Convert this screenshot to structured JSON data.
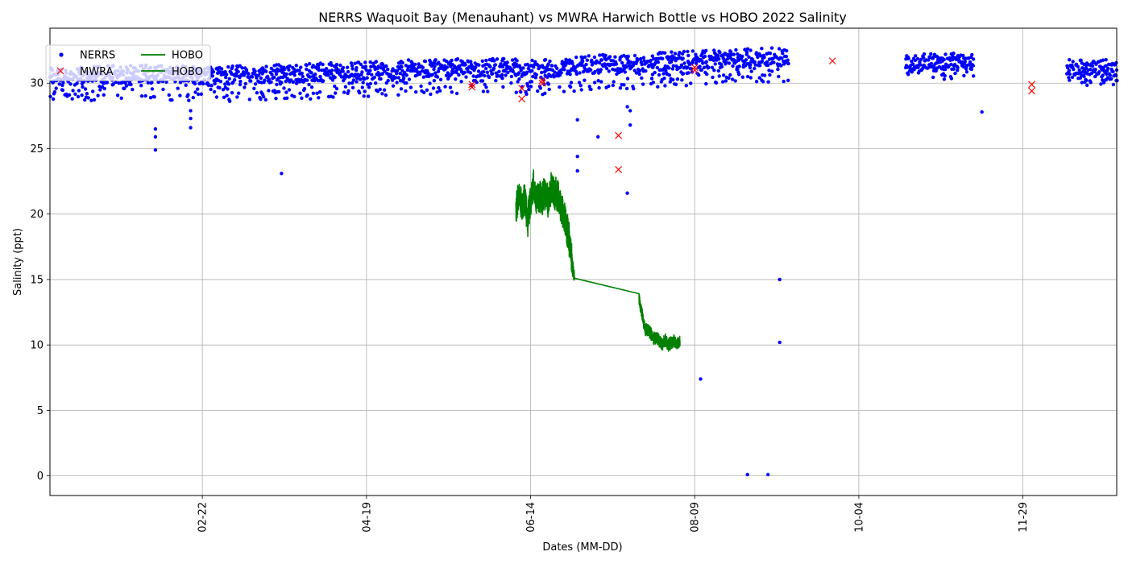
{
  "chart_data": {
    "type": "scatter",
    "title": "NERRS Waquoit Bay (Menauhant) vs MWRA Harwich Bottle vs HOBO 2022 Salinity",
    "xlabel": "Dates (MM-DD)",
    "ylabel": "Salinity (ppt)",
    "x_ticks": [
      "02-22",
      "04-19",
      "06-14",
      "08-09",
      "10-04",
      "11-29"
    ],
    "y_ticks": [
      0,
      5,
      10,
      15,
      20,
      25,
      30
    ],
    "xlim": [
      "2022-01-01",
      "2022-12-31"
    ],
    "ylim": [
      -1.5,
      34.2
    ],
    "grid": true,
    "legend_position": "top-left",
    "legend": [
      "NERRS",
      "MWRA",
      "HOBO",
      "HOBO"
    ],
    "colors": {
      "nerrs": "#0000ff",
      "mwra": "#ff0000",
      "hobo": "#008000"
    },
    "series": [
      {
        "name": "NERRS",
        "kind": "scatter",
        "baseline_band": [
          [
            "2022-01-01",
            30.3
          ],
          [
            "2022-02-01",
            30.5
          ],
          [
            "2022-03-01",
            30.4
          ],
          [
            "2022-04-01",
            30.6
          ],
          [
            "2022-05-01",
            30.9
          ],
          [
            "2022-06-01",
            31.0
          ],
          [
            "2022-06-20",
            30.9
          ],
          [
            "2022-07-01",
            31.2
          ],
          [
            "2022-08-01",
            31.5
          ],
          [
            "2022-08-31",
            31.8
          ],
          [
            "2022-09-10",
            31.8
          ]
        ],
        "late_segments": [
          [
            "2022-10-20",
            "2022-11-12",
            31.5
          ],
          [
            "2022-12-14",
            "2022-12-31",
            31.0
          ]
        ],
        "outliers": [
          [
            "2022-02-06",
            26.5
          ],
          [
            "2022-02-06",
            25.9
          ],
          [
            "2022-02-06",
            24.9
          ],
          [
            "2022-02-18",
            26.6
          ],
          [
            "2022-02-18",
            27.3
          ],
          [
            "2022-02-18",
            27.9
          ],
          [
            "2022-03-21",
            23.1
          ],
          [
            "2022-06-30",
            27.2
          ],
          [
            "2022-06-30",
            24.4
          ],
          [
            "2022-06-30",
            23.3
          ],
          [
            "2022-07-07",
            25.9
          ],
          [
            "2022-07-17",
            28.2
          ],
          [
            "2022-07-17",
            21.6
          ],
          [
            "2022-07-18",
            26.8
          ],
          [
            "2022-07-18",
            27.9
          ],
          [
            "2022-08-11",
            7.4
          ],
          [
            "2022-08-27",
            0.1
          ],
          [
            "2022-09-03",
            0.1
          ],
          [
            "2022-09-07",
            15.0
          ],
          [
            "2022-09-07",
            10.2
          ],
          [
            "2022-11-15",
            27.8
          ]
        ]
      },
      {
        "name": "MWRA",
        "kind": "marker",
        "points": [
          [
            "2022-05-25",
            29.7
          ],
          [
            "2022-05-25",
            29.9
          ],
          [
            "2022-06-11",
            29.6
          ],
          [
            "2022-06-11",
            28.8
          ],
          [
            "2022-06-18",
            30.0
          ],
          [
            "2022-06-18",
            30.2
          ],
          [
            "2022-07-14",
            26.0
          ],
          [
            "2022-07-14",
            23.4
          ],
          [
            "2022-08-09",
            31.0
          ],
          [
            "2022-08-09",
            31.2
          ],
          [
            "2022-09-25",
            31.7
          ],
          [
            "2022-12-02",
            29.9
          ],
          [
            "2022-12-02",
            29.4
          ]
        ]
      },
      {
        "name": "HOBO",
        "kind": "line",
        "points": [
          [
            "2022-06-09",
            20.2
          ],
          [
            "2022-06-10",
            21.5
          ],
          [
            "2022-06-11",
            20.6
          ],
          [
            "2022-06-12",
            21.3
          ],
          [
            "2022-06-13",
            19.4
          ],
          [
            "2022-06-14",
            21.1
          ],
          [
            "2022-06-15",
            22.1
          ],
          [
            "2022-06-16",
            21.2
          ],
          [
            "2022-06-17",
            21.4
          ],
          [
            "2022-06-18",
            21.2
          ],
          [
            "2022-06-19",
            21.8
          ],
          [
            "2022-06-20",
            20.9
          ],
          [
            "2022-06-21",
            21.9
          ],
          [
            "2022-06-22",
            21.6
          ],
          [
            "2022-06-23",
            21.5
          ],
          [
            "2022-06-24",
            20.9
          ],
          [
            "2022-06-25",
            20.1
          ],
          [
            "2022-06-26",
            19.2
          ],
          [
            "2022-06-27",
            18.4
          ],
          [
            "2022-06-28",
            16.5
          ],
          [
            "2022-06-29",
            15.1
          ],
          [
            "2022-07-21",
            13.5
          ],
          [
            "2022-07-22",
            12.4
          ],
          [
            "2022-07-23",
            11.2
          ],
          [
            "2022-07-24",
            11.1
          ],
          [
            "2022-07-25",
            10.9
          ],
          [
            "2022-07-26",
            10.5
          ],
          [
            "2022-07-27",
            10.6
          ],
          [
            "2022-07-28",
            10.3
          ],
          [
            "2022-07-29",
            10.1
          ],
          [
            "2022-07-30",
            10.4
          ],
          [
            "2022-07-31",
            10.0
          ],
          [
            "2022-08-01",
            10.2
          ],
          [
            "2022-08-02",
            10.3
          ],
          [
            "2022-08-03",
            10.0
          ],
          [
            "2022-08-04",
            10.3
          ]
        ]
      }
    ]
  }
}
